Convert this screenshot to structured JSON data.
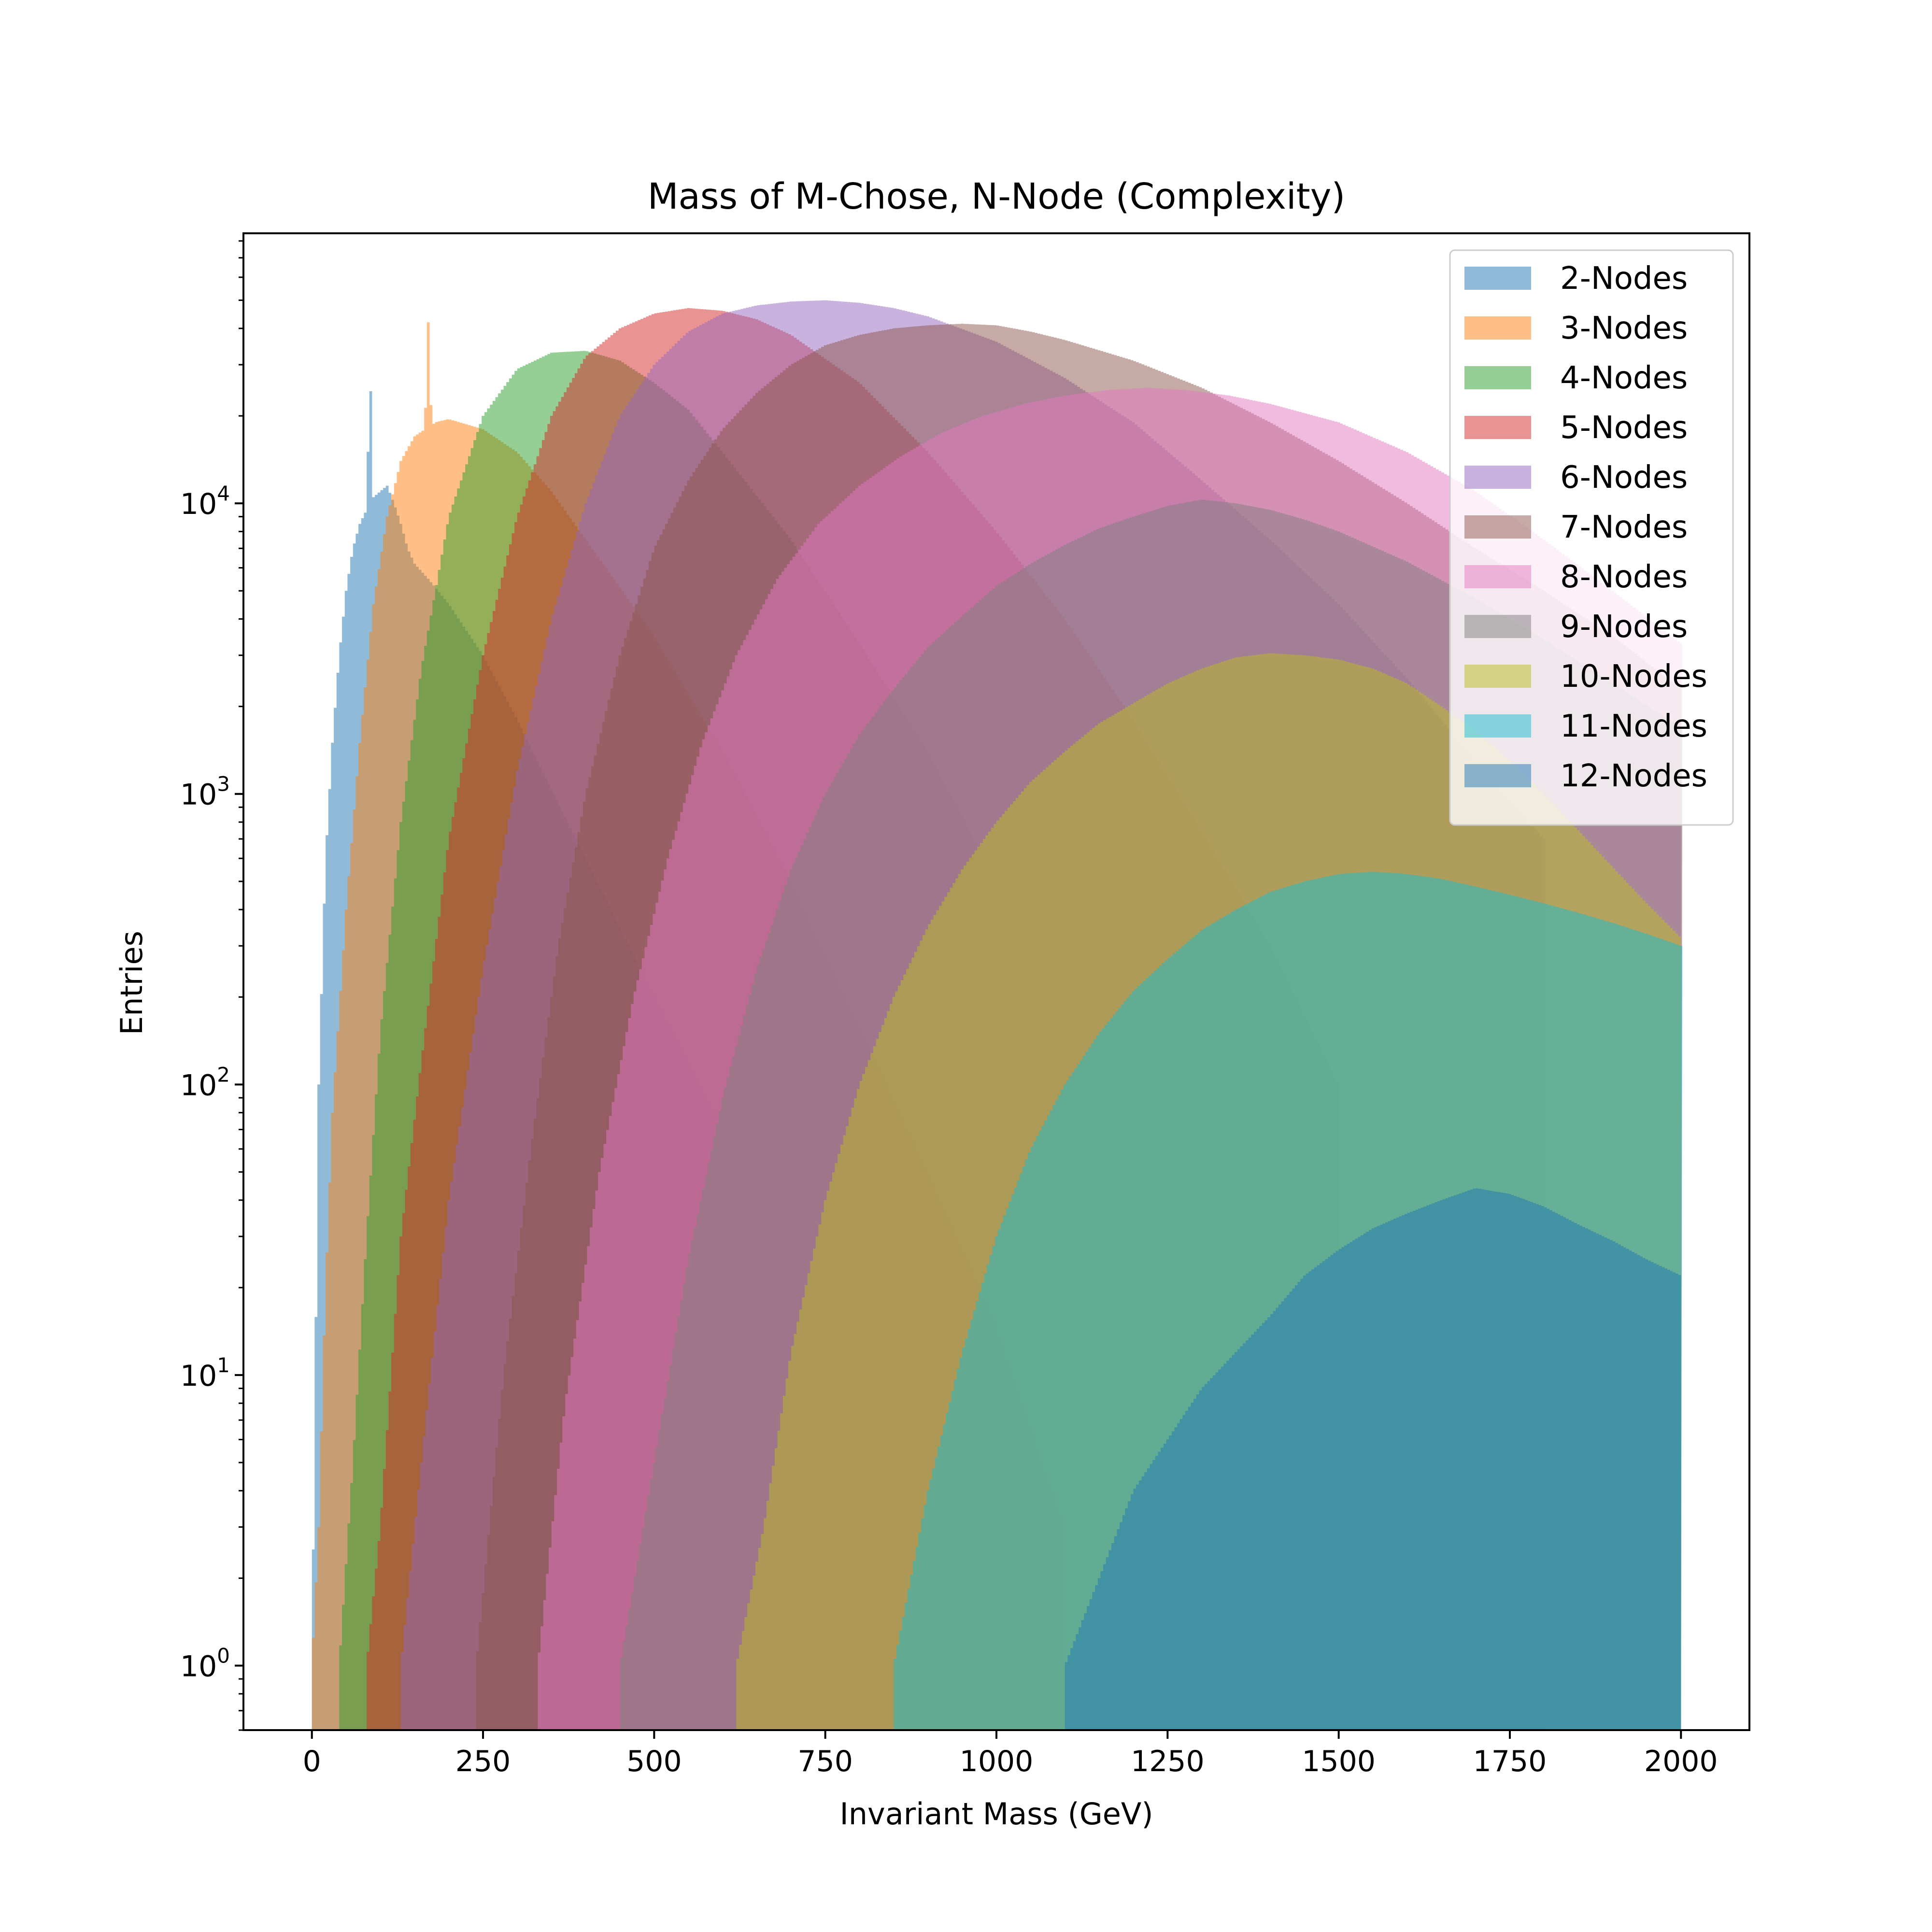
{
  "chart_data": {
    "type": "histogram",
    "title": "Mass of M-Chose, N-Node (Complexity)",
    "xlabel": "Invariant Mass (GeV)",
    "ylabel": "Entries",
    "xlim": [
      -100,
      2100
    ],
    "ylim": [
      0.6,
      85000
    ],
    "yscale": "log",
    "x_ticks": [
      0,
      250,
      500,
      750,
      1000,
      1250,
      1500,
      1750,
      2000
    ],
    "x_tick_labels": [
      "0",
      "250",
      "500",
      "750",
      "1000",
      "1250",
      "1500",
      "1750",
      "2000"
    ],
    "y_ticks": [
      1,
      10,
      100,
      1000,
      10000
    ],
    "y_tick_labels": [
      {
        "base": "10",
        "exp": "0"
      },
      {
        "base": "10",
        "exp": "1"
      },
      {
        "base": "10",
        "exp": "2"
      },
      {
        "base": "10",
        "exp": "3"
      },
      {
        "base": "10",
        "exp": "4"
      }
    ],
    "alpha": 0.5,
    "legend_position": "top-right",
    "series": [
      {
        "name": "2-Nodes",
        "color": "#1f77b4",
        "x": [
          0,
          10,
          20,
          30,
          40,
          50,
          60,
          70,
          80,
          85,
          90,
          100,
          110,
          120,
          130,
          140,
          150,
          170,
          200,
          250,
          300,
          400,
          500,
          600,
          700,
          800,
          900,
          1000
        ],
        "y": [
          1,
          100,
          600,
          1500,
          3000,
          5000,
          7000,
          8500,
          9500,
          30000,
          10500,
          11000,
          11500,
          10000,
          8500,
          7000,
          6200,
          5500,
          4500,
          3000,
          1800,
          600,
          200,
          70,
          20,
          6,
          2,
          1
        ]
      },
      {
        "name": "3-Nodes",
        "color": "#ff7f0e",
        "x": [
          0,
          10,
          20,
          30,
          50,
          70,
          90,
          110,
          130,
          150,
          165,
          170,
          175,
          180,
          200,
          250,
          300,
          350,
          400,
          500,
          600,
          700,
          800,
          900,
          1000,
          1100
        ],
        "y": [
          1,
          3,
          20,
          80,
          400,
          1500,
          4500,
          9000,
          14000,
          17000,
          18000,
          42000,
          18500,
          19000,
          19500,
          18000,
          15000,
          11000,
          7500,
          3500,
          1400,
          500,
          160,
          50,
          15,
          3
        ]
      },
      {
        "name": "4-Nodes",
        "color": "#2ca02c",
        "x": [
          40,
          60,
          80,
          100,
          130,
          160,
          200,
          250,
          300,
          350,
          400,
          450,
          500,
          550,
          600,
          700,
          800,
          900,
          1000,
          1100,
          1200,
          1300
        ],
        "y": [
          1,
          5,
          30,
          150,
          800,
          2700,
          9000,
          20000,
          29000,
          33000,
          33500,
          31000,
          26000,
          21000,
          15000,
          7500,
          3300,
          1400,
          500,
          160,
          50,
          10
        ]
      },
      {
        "name": "5-Nodes",
        "color": "#d62728",
        "x": [
          80,
          100,
          130,
          160,
          200,
          250,
          300,
          350,
          400,
          450,
          500,
          550,
          600,
          650,
          700,
          800,
          900,
          1000,
          1100,
          1200,
          1300,
          1400,
          1500
        ],
        "y": [
          1,
          3,
          30,
          120,
          700,
          3000,
          9000,
          20000,
          32000,
          40000,
          45000,
          47000,
          46000,
          43000,
          38000,
          26000,
          15000,
          8000,
          4000,
          1800,
          750,
          300,
          100
        ]
      },
      {
        "name": "6-Nodes",
        "color": "#9467bd",
        "x": [
          130,
          160,
          200,
          250,
          300,
          350,
          400,
          450,
          500,
          550,
          600,
          650,
          700,
          750,
          800,
          850,
          900,
          1000,
          1100,
          1200,
          1300,
          1400,
          1500,
          1600,
          1700,
          1800
        ],
        "y": [
          1,
          5,
          40,
          250,
          1200,
          4000,
          10000,
          20000,
          30000,
          39000,
          45000,
          48000,
          49500,
          50000,
          49000,
          47000,
          44000,
          36000,
          27000,
          19000,
          12000,
          7500,
          4500,
          2500,
          1300,
          700
        ]
      },
      {
        "name": "7-Nodes",
        "color": "#8c564b",
        "x": [
          240,
          280,
          320,
          360,
          400,
          450,
          500,
          550,
          600,
          650,
          700,
          750,
          800,
          850,
          900,
          950,
          1000,
          1050,
          1100,
          1200,
          1300,
          1400,
          1500,
          1600,
          1700,
          1800,
          1900,
          2000
        ],
        "y": [
          1,
          10,
          60,
          300,
          1000,
          3000,
          7000,
          12000,
          18000,
          24000,
          30000,
          35000,
          38000,
          40000,
          41000,
          41500,
          41000,
          39000,
          36500,
          31000,
          25000,
          19000,
          14000,
          10000,
          7000,
          5000,
          3500,
          2300
        ]
      },
      {
        "name": "8-Nodes",
        "color": "#e377c2",
        "x": [
          330,
          370,
          420,
          470,
          520,
          570,
          620,
          680,
          740,
          800,
          860,
          920,
          980,
          1040,
          1100,
          1160,
          1220,
          1280,
          1340,
          1400,
          1500,
          1600,
          1700,
          1800,
          1900,
          2000
        ],
        "y": [
          1,
          8,
          50,
          200,
          600,
          1500,
          3000,
          5500,
          8500,
          11500,
          14500,
          17500,
          20000,
          22000,
          23500,
          24500,
          25000,
          24500,
          23500,
          22000,
          19000,
          15000,
          11000,
          7500,
          5000,
          3300
        ]
      },
      {
        "name": "9-Nodes",
        "color": "#7f7f7f",
        "x": [
          450,
          500,
          550,
          600,
          650,
          700,
          750,
          800,
          850,
          900,
          950,
          1000,
          1050,
          1100,
          1150,
          1200,
          1250,
          1300,
          1350,
          1400,
          1450,
          1500,
          1600,
          1700,
          1800,
          1900,
          2000
        ],
        "y": [
          1,
          5,
          25,
          90,
          250,
          550,
          1000,
          1600,
          2300,
          3200,
          4100,
          5200,
          6200,
          7200,
          8200,
          9000,
          9800,
          10300,
          10000,
          9500,
          8800,
          8000,
          6300,
          4700,
          3400,
          2400,
          1700
        ]
      },
      {
        "name": "10-Nodes",
        "color": "#bcbd22",
        "x": [
          620,
          660,
          700,
          750,
          800,
          850,
          900,
          950,
          1000,
          1050,
          1100,
          1150,
          1200,
          1250,
          1300,
          1350,
          1400,
          1450,
          1500,
          1550,
          1600,
          1650,
          1700,
          1750,
          1800,
          1850,
          1900,
          1950,
          2000
        ],
        "y": [
          1,
          3,
          12,
          40,
          100,
          200,
          350,
          550,
          800,
          1100,
          1400,
          1750,
          2050,
          2400,
          2700,
          2950,
          3050,
          3000,
          2900,
          2700,
          2400,
          2000,
          1650,
          1300,
          1000,
          750,
          560,
          420,
          320
        ]
      },
      {
        "name": "11-Nodes",
        "color": "#17becf",
        "x": [
          850,
          900,
          950,
          1000,
          1050,
          1100,
          1150,
          1200,
          1250,
          1300,
          1350,
          1400,
          1450,
          1500,
          1550,
          1600,
          1650,
          1700,
          1750,
          1800,
          1850,
          1900,
          1950,
          2000
        ],
        "y": [
          1,
          4,
          12,
          30,
          60,
          100,
          150,
          210,
          270,
          340,
          400,
          460,
          500,
          530,
          540,
          530,
          510,
          480,
          450,
          420,
          390,
          360,
          330,
          300
        ]
      },
      {
        "name": "12-Nodes",
        "color": "#1f77b4",
        "x": [
          1100,
          1150,
          1200,
          1250,
          1300,
          1350,
          1400,
          1450,
          1500,
          1550,
          1600,
          1650,
          1700,
          1750,
          1800,
          1850,
          1900,
          1950,
          2000
        ],
        "y": [
          1,
          2,
          4,
          6,
          9,
          12,
          16,
          22,
          27,
          32,
          36,
          40,
          44,
          42,
          38,
          33,
          29,
          25,
          22
        ]
      }
    ]
  }
}
